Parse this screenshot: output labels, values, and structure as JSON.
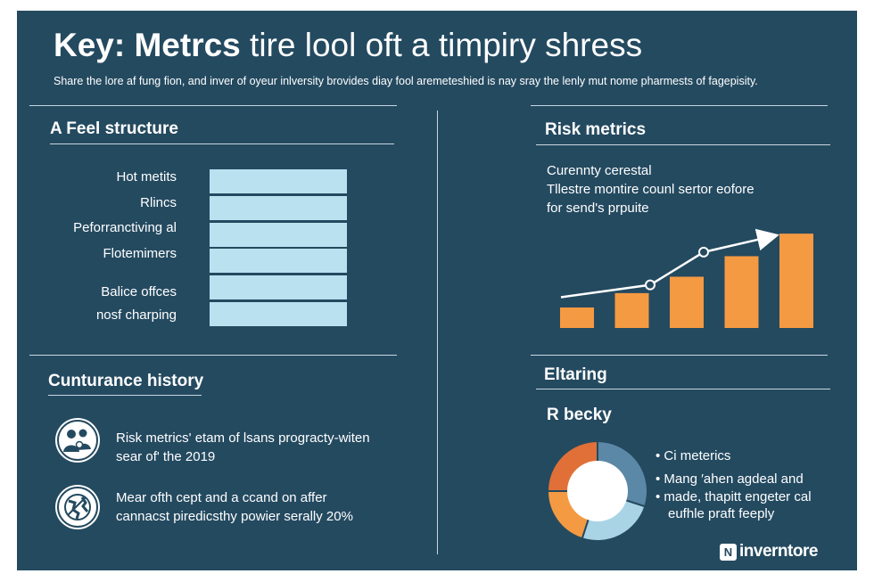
{
  "header": {
    "title_bold": "Key: Metrcs",
    "title_rest": " tire lool oft a timpiry shress",
    "subtitle": "Share the lore af fung fion, and inver of oyeur inlversity brovides diay fool aremeteshied is nay sray the lenly mut nome pharmests of fagepisity."
  },
  "feel_structure": {
    "heading": "A  Feel structure",
    "rows": [
      "Hot metits",
      "Rlincs",
      "Peforranctiving al",
      "Flotemimers",
      "Balice offces",
      "nosf charping"
    ]
  },
  "risk_metrics": {
    "heading": "Risk metrics",
    "lines": [
      "Curennty cerestal",
      "Tllestre montire counl sertor eofore",
      "for send's prpuite"
    ],
    "chart_data": {
      "type": "bar",
      "categories": [
        "",
        "",
        "",
        "",
        "",
        ""
      ],
      "values": [
        1,
        1.7,
        2.5,
        3.5,
        4.6,
        7.3
      ],
      "trend": [
        1.5,
        2.1,
        3.7,
        4.5
      ],
      "accent": "#f49a42",
      "line_color": "#ffffff"
    }
  },
  "customer_history": {
    "heading": "Cunturance history",
    "items": [
      {
        "icon": "people-icon",
        "line1": "Risk metrics' etam of lsans progracty-witen",
        "line2": "sear of' the 2019"
      },
      {
        "icon": "globe-icon",
        "line1": "Mear ofth cept and a ccand on affer",
        "line2": "cannacst piredicsthy powier serally 20%"
      }
    ]
  },
  "eltaring": {
    "heading": "Eltaring",
    "subheading": "R becky",
    "legend": [
      "Ci meterics",
      "Mang ′ahen agdeal and",
      "made, thapitt engeter cal",
      "eufhle praft feeply"
    ],
    "chart_data": {
      "type": "pie",
      "values": [
        30,
        25,
        20,
        25
      ],
      "colors": [
        "#5b88a6",
        "#a9d4e6",
        "#f49a42",
        "#e07038"
      ]
    }
  },
  "brand": {
    "logo_mark": "N",
    "logo_text": "inverntore"
  }
}
